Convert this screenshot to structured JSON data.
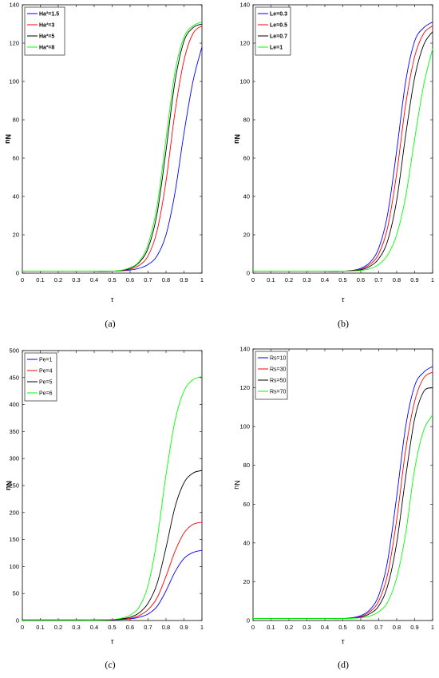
{
  "captions": [
    "(a)",
    "(b)",
    "(c)",
    "(d)"
  ],
  "chart_data": [
    {
      "type": "line",
      "xlabel": "τ",
      "ylabel": "Nu",
      "xlim": [
        0,
        1
      ],
      "ylim": [
        0,
        140
      ],
      "xticks": [
        "0",
        "0.1",
        "0.2",
        "0.3",
        "0.4",
        "0.5",
        "0.6",
        "0.7",
        "0.8",
        "0.9",
        "1"
      ],
      "yticks": [
        "0",
        "20",
        "40",
        "60",
        "80",
        "100",
        "120",
        "140"
      ],
      "legend_position": "top-left",
      "series": [
        {
          "name": "Ha²=1.5",
          "color": "#0000ff",
          "x": [
            0,
            0.1,
            0.2,
            0.3,
            0.4,
            0.5,
            0.55,
            0.6,
            0.65,
            0.7,
            0.75,
            0.8,
            0.85,
            0.9,
            0.95,
            1
          ],
          "y": [
            1,
            1,
            1,
            1,
            1,
            1,
            1.2,
            1.6,
            2.5,
            4.5,
            9,
            20,
            42,
            73,
            100,
            118
          ]
        },
        {
          "name": "Ha²=3",
          "color": "#ff0000",
          "x": [
            0,
            0.1,
            0.2,
            0.3,
            0.4,
            0.5,
            0.55,
            0.6,
            0.65,
            0.7,
            0.75,
            0.8,
            0.85,
            0.9,
            0.95,
            1
          ],
          "y": [
            1,
            1,
            1,
            1,
            1,
            1,
            1.3,
            2,
            4,
            9,
            22,
            48,
            84,
            111,
            125,
            129
          ]
        },
        {
          "name": "Ha²=5",
          "color": "#000000",
          "x": [
            0,
            0.1,
            0.2,
            0.3,
            0.4,
            0.5,
            0.55,
            0.6,
            0.65,
            0.7,
            0.75,
            0.8,
            0.85,
            0.9,
            0.95,
            1
          ],
          "y": [
            1,
            1,
            1,
            1,
            1,
            1,
            1.4,
            2.5,
            5.5,
            13,
            31,
            64,
            100,
            121,
            128,
            130
          ]
        },
        {
          "name": "Ha²=8",
          "color": "#00ff00",
          "x": [
            0,
            0.1,
            0.2,
            0.3,
            0.4,
            0.5,
            0.55,
            0.6,
            0.65,
            0.7,
            0.75,
            0.8,
            0.85,
            0.9,
            0.95,
            1
          ],
          "y": [
            1,
            1,
            1,
            1,
            1,
            1,
            1.5,
            2.8,
            6,
            15,
            35,
            70,
            105,
            123,
            129,
            131
          ]
        }
      ]
    },
    {
      "type": "line",
      "xlabel": "τ",
      "ylabel": "Nu",
      "xlim": [
        0,
        1
      ],
      "ylim": [
        0,
        140
      ],
      "xticks": [
        "0",
        "0.1",
        "0.2",
        "0.3",
        "0.4",
        "0.5",
        "0.6",
        "0.7",
        "0.8",
        "0.9",
        "1"
      ],
      "yticks": [
        "0",
        "20",
        "40",
        "60",
        "80",
        "100",
        "120",
        "140"
      ],
      "legend_position": "top-left",
      "series": [
        {
          "name": "Le=0.3",
          "color": "#0000ff",
          "x": [
            0,
            0.1,
            0.2,
            0.3,
            0.4,
            0.5,
            0.55,
            0.6,
            0.65,
            0.7,
            0.75,
            0.8,
            0.85,
            0.9,
            0.95,
            1
          ],
          "y": [
            1,
            1,
            1,
            1,
            1,
            1,
            1.4,
            2.5,
            5.5,
            13,
            31,
            64,
            100,
            121,
            128,
            131
          ]
        },
        {
          "name": "Le=0.5",
          "color": "#ff0000",
          "x": [
            0,
            0.1,
            0.2,
            0.3,
            0.4,
            0.5,
            0.55,
            0.6,
            0.65,
            0.7,
            0.75,
            0.8,
            0.85,
            0.9,
            0.95,
            1
          ],
          "y": [
            1,
            1,
            1,
            1,
            1,
            1,
            1.3,
            2,
            4.5,
            10,
            24,
            52,
            88,
            113,
            125,
            129
          ]
        },
        {
          "name": "Le=0.7",
          "color": "#000000",
          "x": [
            0,
            0.1,
            0.2,
            0.3,
            0.4,
            0.5,
            0.55,
            0.6,
            0.65,
            0.7,
            0.75,
            0.8,
            0.85,
            0.9,
            0.95,
            1
          ],
          "y": [
            1,
            1,
            1,
            1,
            1,
            1,
            1.2,
            1.7,
            3.5,
            7.5,
            17,
            38,
            72,
            102,
            119,
            126
          ]
        },
        {
          "name": "Le=1",
          "color": "#00ff00",
          "x": [
            0,
            0.1,
            0.2,
            0.3,
            0.4,
            0.5,
            0.55,
            0.6,
            0.65,
            0.7,
            0.75,
            0.8,
            0.85,
            0.9,
            0.95,
            1
          ],
          "y": [
            1,
            1,
            1,
            1,
            1,
            1,
            1.1,
            1.4,
            2.3,
            4.5,
            9.5,
            20,
            40,
            70,
            98,
            117
          ]
        }
      ]
    },
    {
      "type": "line",
      "xlabel": "τ",
      "ylabel": "Nu",
      "xlim": [
        0,
        1
      ],
      "ylim": [
        0,
        500
      ],
      "xticks": [
        "0",
        "0.1",
        "0.2",
        "0.3",
        "0.4",
        "0.5",
        "0.6",
        "0.7",
        "0.8",
        "0.9",
        "1"
      ],
      "yticks": [
        "0",
        "50",
        "100",
        "150",
        "200",
        "250",
        "300",
        "350",
        "400",
        "450",
        "500"
      ],
      "legend_position": "top-left",
      "series": [
        {
          "name": "Pe=1",
          "color": "#0000ff",
          "x": [
            0,
            0.1,
            0.2,
            0.3,
            0.4,
            0.5,
            0.55,
            0.6,
            0.65,
            0.7,
            0.75,
            0.8,
            0.85,
            0.9,
            0.95,
            1
          ],
          "y": [
            1,
            1,
            1,
            1,
            1,
            1.5,
            2,
            3,
            6,
            12,
            26,
            55,
            90,
            115,
            126,
            130
          ]
        },
        {
          "name": "Pe=4",
          "color": "#ff0000",
          "x": [
            0,
            0.1,
            0.2,
            0.3,
            0.4,
            0.5,
            0.55,
            0.6,
            0.65,
            0.7,
            0.75,
            0.8,
            0.85,
            0.9,
            0.95,
            1
          ],
          "y": [
            1,
            1,
            1,
            1,
            1,
            1.5,
            2.5,
            4,
            9,
            20,
            42,
            82,
            128,
            162,
            178,
            182
          ]
        },
        {
          "name": "Pe=5",
          "color": "#000000",
          "x": [
            0,
            0.1,
            0.2,
            0.3,
            0.4,
            0.5,
            0.55,
            0.6,
            0.65,
            0.7,
            0.75,
            0.8,
            0.85,
            0.9,
            0.95,
            1
          ],
          "y": [
            1,
            1,
            1,
            1,
            1,
            1.5,
            3,
            6,
            14,
            32,
            68,
            135,
            210,
            255,
            273,
            278
          ]
        },
        {
          "name": "Pe=6",
          "color": "#00ff00",
          "x": [
            0,
            0.1,
            0.2,
            0.3,
            0.4,
            0.5,
            0.55,
            0.6,
            0.65,
            0.7,
            0.75,
            0.8,
            0.85,
            0.9,
            0.95,
            1
          ],
          "y": [
            1,
            1,
            1,
            1,
            1,
            2,
            4,
            10,
            25,
            65,
            150,
            270,
            370,
            425,
            446,
            452
          ]
        }
      ]
    },
    {
      "type": "line",
      "xlabel": "τ",
      "ylabel": "Nu",
      "xlim": [
        0,
        1
      ],
      "ylim": [
        0,
        140
      ],
      "xticks": [
        "0",
        "0.1",
        "0.2",
        "0.3",
        "0.4",
        "0.5",
        "0.6",
        "0.7",
        "0.8",
        "0.9",
        "1"
      ],
      "yticks": [
        "0",
        "20",
        "40",
        "60",
        "80",
        "100",
        "120",
        "140"
      ],
      "legend_position": "top-left",
      "series": [
        {
          "name": "Rs=10",
          "color": "#0000ff",
          "x": [
            0,
            0.1,
            0.2,
            0.3,
            0.4,
            0.5,
            0.55,
            0.6,
            0.65,
            0.7,
            0.75,
            0.8,
            0.85,
            0.9,
            0.95,
            1
          ],
          "y": [
            1,
            1,
            1,
            1,
            1,
            1,
            1.4,
            2.5,
            5.5,
            13,
            31,
            64,
            100,
            121,
            128,
            131
          ]
        },
        {
          "name": "Rs=30",
          "color": "#ff0000",
          "x": [
            0,
            0.1,
            0.2,
            0.3,
            0.4,
            0.5,
            0.55,
            0.6,
            0.65,
            0.7,
            0.75,
            0.8,
            0.85,
            0.9,
            0.95,
            1
          ],
          "y": [
            1,
            1,
            1,
            1,
            1,
            1,
            1.3,
            2,
            4.5,
            10,
            24,
            52,
            88,
            113,
            125,
            128
          ]
        },
        {
          "name": "Rs=50",
          "color": "#000000",
          "x": [
            0,
            0.1,
            0.2,
            0.3,
            0.4,
            0.5,
            0.55,
            0.6,
            0.65,
            0.7,
            0.75,
            0.8,
            0.85,
            0.9,
            0.95,
            1
          ],
          "y": [
            1,
            1,
            1,
            1,
            1,
            1,
            1.2,
            1.7,
            3.5,
            7.5,
            18,
            40,
            74,
            104,
            118,
            120
          ]
        },
        {
          "name": "Rs=70",
          "color": "#00ff00",
          "x": [
            0,
            0.1,
            0.2,
            0.3,
            0.4,
            0.5,
            0.55,
            0.6,
            0.65,
            0.7,
            0.75,
            0.8,
            0.85,
            0.9,
            0.95,
            1
          ],
          "y": [
            1,
            1,
            1,
            1,
            1,
            1,
            1.1,
            1.4,
            2.3,
            4.5,
            9.5,
            22,
            45,
            78,
            98,
            106
          ]
        }
      ]
    }
  ]
}
